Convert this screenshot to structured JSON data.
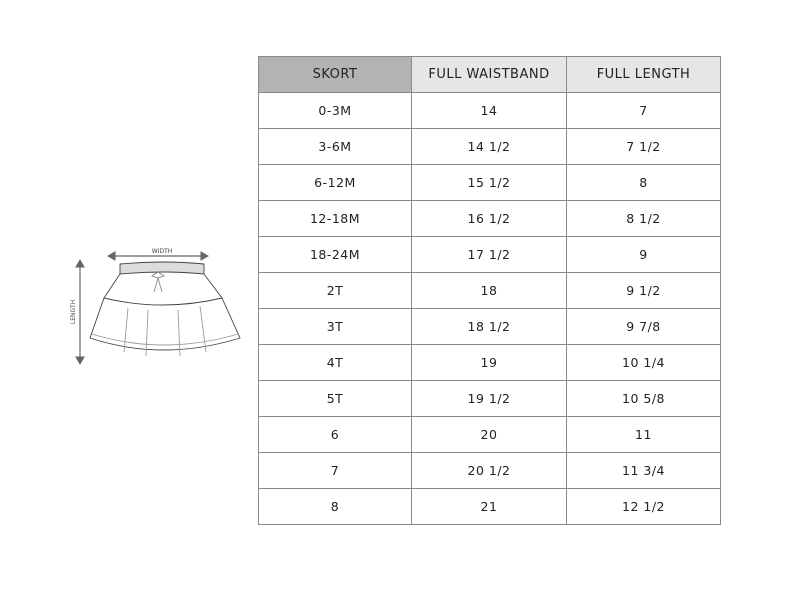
{
  "illustration": {
    "width_label": "WIDTH",
    "length_label": "LENGTH"
  },
  "table": {
    "headers": [
      "SKORT",
      "FULL WAISTBAND",
      "FULL LENGTH"
    ],
    "header_colors": {
      "first": "#b3b3b3",
      "other": "#e6e6e6"
    },
    "rows": [
      [
        "0-3M",
        "14",
        "7"
      ],
      [
        "3-6M",
        "14 1/2",
        "7 1/2"
      ],
      [
        "6-12M",
        "15 1/2",
        "8"
      ],
      [
        "12-18M",
        "16 1/2",
        "8 1/2"
      ],
      [
        "18-24M",
        "17 1/2",
        "9"
      ],
      [
        "2T",
        "18",
        "9 1/2"
      ],
      [
        "3T",
        "18 1/2",
        "9 7/8"
      ],
      [
        "4T",
        "19",
        "10 1/4"
      ],
      [
        "5T",
        "19 1/2",
        "10 5/8"
      ],
      [
        "6",
        "20",
        "11"
      ],
      [
        "7",
        "20 1/2",
        "11 3/4"
      ],
      [
        "8",
        "21",
        "12 1/2"
      ]
    ]
  }
}
